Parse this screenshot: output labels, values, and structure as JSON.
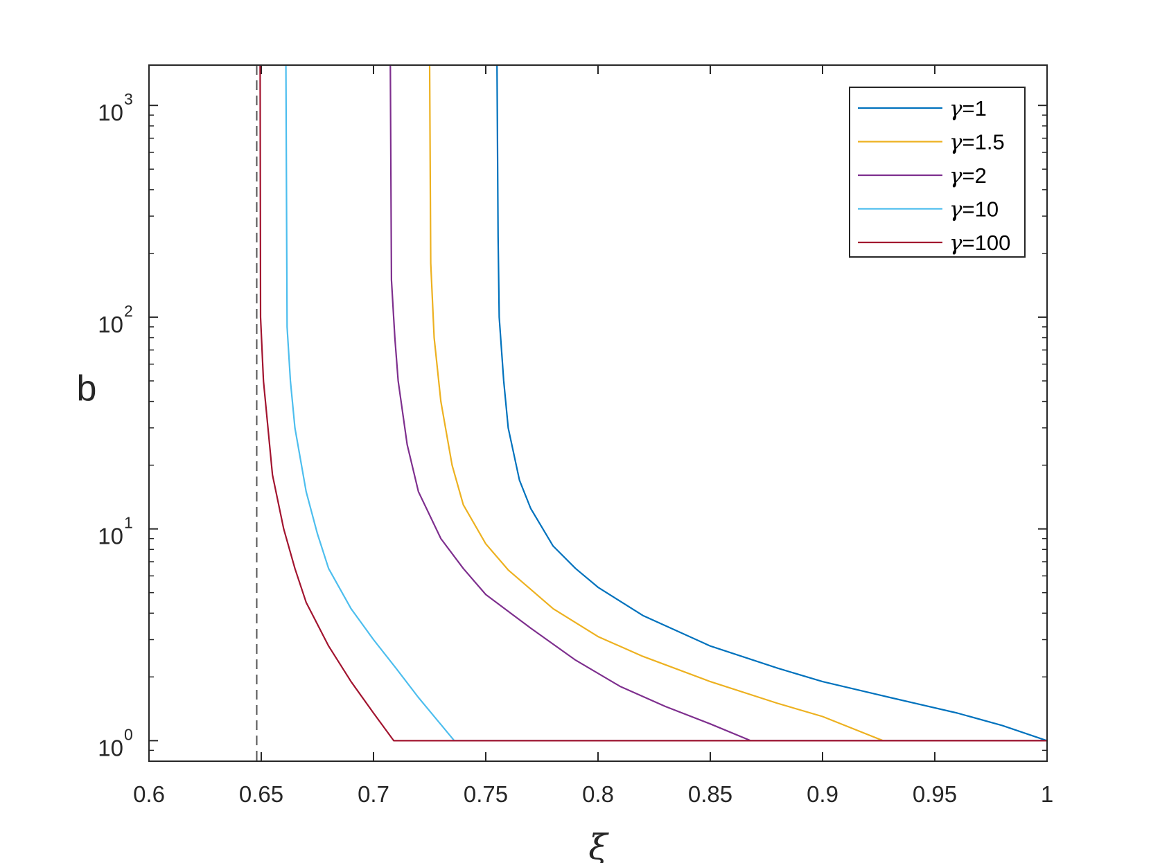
{
  "chart_data": {
    "type": "line",
    "title": "",
    "xlabel": "ξ",
    "ylabel": "b",
    "xlim": [
      0.6,
      1.0
    ],
    "ylim": [
      0.8,
      1550
    ],
    "yscale": "log",
    "grid": false,
    "legend_position": "top-right",
    "x_ticks": [
      {
        "value": 0.6,
        "label": "0.6"
      },
      {
        "value": 0.65,
        "label": "0.65"
      },
      {
        "value": 0.7,
        "label": "0.7"
      },
      {
        "value": 0.75,
        "label": "0.75"
      },
      {
        "value": 0.8,
        "label": "0.8"
      },
      {
        "value": 0.85,
        "label": "0.85"
      },
      {
        "value": 0.9,
        "label": "0.9"
      },
      {
        "value": 0.95,
        "label": "0.95"
      },
      {
        "value": 1.0,
        "label": "1"
      }
    ],
    "y_ticks": [
      {
        "value": 1,
        "base": "10",
        "exp": "0"
      },
      {
        "value": 10,
        "base": "10",
        "exp": "1"
      },
      {
        "value": 100,
        "base": "10",
        "exp": "2"
      },
      {
        "value": 1000,
        "base": "10",
        "exp": "3"
      }
    ],
    "reference_line": {
      "x": 0.648,
      "style": "dashed",
      "color": "#555555"
    },
    "series": [
      {
        "name": "γ=1",
        "greek": "γ",
        "label_suffix": "=1",
        "color": "#0072BD",
        "points": [
          [
            0.755,
            1550
          ],
          [
            0.7555,
            240
          ],
          [
            0.756,
            100
          ],
          [
            0.758,
            50
          ],
          [
            0.76,
            30
          ],
          [
            0.765,
            17
          ],
          [
            0.77,
            12.5
          ],
          [
            0.78,
            8.3
          ],
          [
            0.79,
            6.5
          ],
          [
            0.8,
            5.3
          ],
          [
            0.82,
            3.9
          ],
          [
            0.85,
            2.8
          ],
          [
            0.88,
            2.2
          ],
          [
            0.9,
            1.9
          ],
          [
            0.93,
            1.6
          ],
          [
            0.96,
            1.35
          ],
          [
            0.98,
            1.18
          ],
          [
            1.0,
            1.0
          ]
        ]
      },
      {
        "name": "γ=1.5",
        "greek": "γ",
        "label_suffix": "=1.5",
        "color": "#EDB120",
        "points": [
          [
            0.725,
            1550
          ],
          [
            0.7255,
            180
          ],
          [
            0.727,
            80
          ],
          [
            0.73,
            40
          ],
          [
            0.735,
            20
          ],
          [
            0.74,
            13
          ],
          [
            0.75,
            8.5
          ],
          [
            0.76,
            6.4
          ],
          [
            0.78,
            4.2
          ],
          [
            0.8,
            3.1
          ],
          [
            0.82,
            2.5
          ],
          [
            0.85,
            1.9
          ],
          [
            0.88,
            1.5
          ],
          [
            0.9,
            1.3
          ],
          [
            0.927,
            1.0
          ],
          [
            1.0,
            1.0
          ]
        ]
      },
      {
        "name": "γ=2",
        "greek": "γ",
        "label_suffix": "=2",
        "color": "#7E2F8E",
        "points": [
          [
            0.7075,
            1550
          ],
          [
            0.708,
            150
          ],
          [
            0.7095,
            80
          ],
          [
            0.711,
            50
          ],
          [
            0.715,
            25
          ],
          [
            0.72,
            15
          ],
          [
            0.73,
            9
          ],
          [
            0.74,
            6.5
          ],
          [
            0.75,
            4.9
          ],
          [
            0.77,
            3.4
          ],
          [
            0.79,
            2.4
          ],
          [
            0.81,
            1.8
          ],
          [
            0.83,
            1.45
          ],
          [
            0.85,
            1.2
          ],
          [
            0.868,
            1.0
          ],
          [
            1.0,
            1.0
          ]
        ]
      },
      {
        "name": "γ=10",
        "greek": "γ",
        "label_suffix": "=10",
        "color": "#4DBEEE",
        "points": [
          [
            0.661,
            1550
          ],
          [
            0.6615,
            90
          ],
          [
            0.663,
            50
          ],
          [
            0.665,
            30
          ],
          [
            0.67,
            15
          ],
          [
            0.675,
            9.5
          ],
          [
            0.68,
            6.5
          ],
          [
            0.69,
            4.2
          ],
          [
            0.7,
            3.0
          ],
          [
            0.71,
            2.2
          ],
          [
            0.72,
            1.6
          ],
          [
            0.736,
            1.0
          ],
          [
            1.0,
            1.0
          ]
        ]
      },
      {
        "name": "γ=100",
        "greek": "γ",
        "label_suffix": "=100",
        "color": "#A2142F",
        "points": [
          [
            0.6495,
            1550
          ],
          [
            0.6497,
            100
          ],
          [
            0.651,
            50
          ],
          [
            0.653,
            30
          ],
          [
            0.655,
            18
          ],
          [
            0.66,
            10
          ],
          [
            0.665,
            6.5
          ],
          [
            0.67,
            4.5
          ],
          [
            0.68,
            2.8
          ],
          [
            0.69,
            1.9
          ],
          [
            0.7,
            1.35
          ],
          [
            0.709,
            1.0
          ],
          [
            1.0,
            1.0
          ]
        ]
      }
    ]
  }
}
